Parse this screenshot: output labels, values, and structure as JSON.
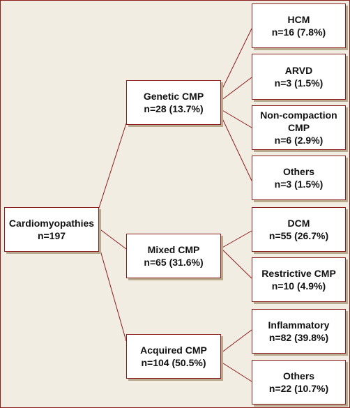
{
  "root": {
    "title": "Cardiomyopathies",
    "count": "n=197"
  },
  "groups": [
    {
      "title": "Genetic CMP",
      "count": "n=28 (13.7%)"
    },
    {
      "title": "Mixed CMP",
      "count": "n=65 (31.6%)"
    },
    {
      "title": "Acquired CMP",
      "count": "n=104 (50.5%)"
    }
  ],
  "leaves": {
    "genetic": [
      {
        "lines": [
          "HCM",
          "n=16 (7.8%)"
        ]
      },
      {
        "lines": [
          "ARVD",
          "n=3 (1.5%)"
        ]
      },
      {
        "lines": [
          "Non-compaction",
          "CMP",
          "n=6 (2.9%)"
        ]
      },
      {
        "lines": [
          "Others",
          "n=3 (1.5%)"
        ]
      }
    ],
    "mixed": [
      {
        "lines": [
          "DCM",
          "n=55 (26.7%)"
        ]
      },
      {
        "lines": [
          "Restrictive CMP",
          "n=10 (4.9%)"
        ]
      }
    ],
    "acquired": [
      {
        "lines": [
          "Inflammatory",
          "n=82 (39.8%)"
        ]
      },
      {
        "lines": [
          "Others",
          "n=22 (10.7%)"
        ]
      }
    ]
  },
  "colors": {
    "border": "#8a1c1c",
    "background": "#f1ede3",
    "box": "#ffffff",
    "shadow": "#b9a98f"
  }
}
